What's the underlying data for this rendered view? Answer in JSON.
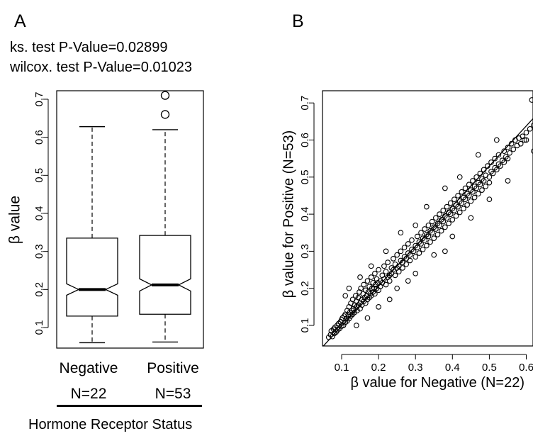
{
  "panels": {
    "a": {
      "label": "A"
    },
    "b": {
      "label": "B"
    }
  },
  "tests": [
    "ks. test P-Value=0.02899",
    "wilcox. test P-Value=0.01023"
  ],
  "footer": {
    "title": "Hormone Receptor Status"
  },
  "chart_data": [
    {
      "type": "box",
      "ylabel": "β value",
      "xlabel": "Hormone Receptor Status",
      "ylim": [
        0.05,
        0.72
      ],
      "yticks": [
        0.1,
        0.2,
        0.3,
        0.4,
        0.5,
        0.6,
        0.7
      ],
      "notched": true,
      "groups": [
        {
          "name": "Negative",
          "n_label": "N=22",
          "min": 0.06,
          "q1": 0.13,
          "median": 0.2,
          "q3": 0.335,
          "max": 0.628,
          "notch_low": 0.185,
          "notch_high": 0.215,
          "outliers": []
        },
        {
          "name": "Positive",
          "n_label": "N=53",
          "min": 0.062,
          "q1": 0.135,
          "median": 0.212,
          "q3": 0.342,
          "max": 0.62,
          "notch_low": 0.196,
          "notch_high": 0.228,
          "outliers": [
            0.66,
            0.71
          ]
        }
      ]
    },
    {
      "type": "scatter",
      "xlabel": "β value for Negative (N=22)",
      "ylabel": "β value for Positive (N=53)",
      "xlim": [
        0.05,
        0.68
      ],
      "ylim": [
        0.05,
        0.72
      ],
      "xticks": [
        0.1,
        0.2,
        0.3,
        0.4,
        0.5,
        0.6
      ],
      "yticks": [
        0.1,
        0.2,
        0.3,
        0.4,
        0.5,
        0.6,
        0.7
      ],
      "fit_line": {
        "slope": 1.08,
        "intercept": -0.01
      },
      "points": [
        [
          0.065,
          0.068
        ],
        [
          0.07,
          0.075
        ],
        [
          0.072,
          0.085
        ],
        [
          0.075,
          0.07
        ],
        [
          0.078,
          0.09
        ],
        [
          0.08,
          0.078
        ],
        [
          0.082,
          0.095
        ],
        [
          0.085,
          0.082
        ],
        [
          0.088,
          0.1
        ],
        [
          0.09,
          0.088
        ],
        [
          0.092,
          0.105
        ],
        [
          0.095,
          0.092
        ],
        [
          0.097,
          0.11
        ],
        [
          0.1,
          0.098
        ],
        [
          0.1,
          0.115
        ],
        [
          0.102,
          0.12
        ],
        [
          0.105,
          0.1
        ],
        [
          0.107,
          0.125
        ],
        [
          0.11,
          0.108
        ],
        [
          0.11,
          0.13
        ],
        [
          0.112,
          0.118
        ],
        [
          0.115,
          0.14
        ],
        [
          0.115,
          0.112
        ],
        [
          0.118,
          0.128
        ],
        [
          0.12,
          0.15
        ],
        [
          0.12,
          0.118
        ],
        [
          0.122,
          0.135
        ],
        [
          0.125,
          0.125
        ],
        [
          0.125,
          0.16
        ],
        [
          0.128,
          0.14
        ],
        [
          0.13,
          0.13
        ],
        [
          0.13,
          0.17
        ],
        [
          0.132,
          0.145
        ],
        [
          0.135,
          0.155
        ],
        [
          0.135,
          0.135
        ],
        [
          0.138,
          0.18
        ],
        [
          0.14,
          0.15
        ],
        [
          0.14,
          0.165
        ],
        [
          0.142,
          0.14
        ],
        [
          0.145,
          0.175
        ],
        [
          0.145,
          0.155
        ],
        [
          0.148,
          0.19
        ],
        [
          0.15,
          0.16
        ],
        [
          0.15,
          0.145
        ],
        [
          0.152,
          0.2
        ],
        [
          0.155,
          0.17
        ],
        [
          0.155,
          0.155
        ],
        [
          0.158,
          0.185
        ],
        [
          0.16,
          0.165
        ],
        [
          0.16,
          0.21
        ],
        [
          0.162,
          0.175
        ],
        [
          0.165,
          0.16
        ],
        [
          0.165,
          0.195
        ],
        [
          0.168,
          0.18
        ],
        [
          0.17,
          0.17
        ],
        [
          0.17,
          0.22
        ],
        [
          0.172,
          0.19
        ],
        [
          0.175,
          0.175
        ],
        [
          0.175,
          0.205
        ],
        [
          0.178,
          0.185
        ],
        [
          0.18,
          0.18
        ],
        [
          0.18,
          0.23
        ],
        [
          0.182,
          0.2
        ],
        [
          0.185,
          0.19
        ],
        [
          0.185,
          0.215
        ],
        [
          0.188,
          0.2
        ],
        [
          0.19,
          0.185
        ],
        [
          0.19,
          0.24
        ],
        [
          0.192,
          0.21
        ],
        [
          0.195,
          0.2
        ],
        [
          0.195,
          0.225
        ],
        [
          0.198,
          0.215
        ],
        [
          0.2,
          0.195
        ],
        [
          0.2,
          0.25
        ],
        [
          0.205,
          0.22
        ],
        [
          0.205,
          0.205
        ],
        [
          0.21,
          0.235
        ],
        [
          0.21,
          0.215
        ],
        [
          0.215,
          0.26
        ],
        [
          0.215,
          0.225
        ],
        [
          0.22,
          0.21
        ],
        [
          0.22,
          0.245
        ],
        [
          0.225,
          0.23
        ],
        [
          0.225,
          0.27
        ],
        [
          0.23,
          0.235
        ],
        [
          0.23,
          0.22
        ],
        [
          0.235,
          0.255
        ],
        [
          0.235,
          0.24
        ],
        [
          0.24,
          0.28
        ],
        [
          0.24,
          0.25
        ],
        [
          0.245,
          0.235
        ],
        [
          0.245,
          0.265
        ],
        [
          0.25,
          0.255
        ],
        [
          0.25,
          0.29
        ],
        [
          0.255,
          0.26
        ],
        [
          0.255,
          0.245
        ],
        [
          0.26,
          0.275
        ],
        [
          0.26,
          0.3
        ],
        [
          0.265,
          0.27
        ],
        [
          0.265,
          0.255
        ],
        [
          0.27,
          0.285
        ],
        [
          0.27,
          0.31
        ],
        [
          0.275,
          0.28
        ],
        [
          0.275,
          0.265
        ],
        [
          0.28,
          0.295
        ],
        [
          0.28,
          0.32
        ],
        [
          0.285,
          0.29
        ],
        [
          0.285,
          0.275
        ],
        [
          0.29,
          0.305
        ],
        [
          0.29,
          0.33
        ],
        [
          0.295,
          0.3
        ],
        [
          0.3,
          0.285
        ],
        [
          0.3,
          0.315
        ],
        [
          0.305,
          0.34
        ],
        [
          0.305,
          0.31
        ],
        [
          0.31,
          0.295
        ],
        [
          0.31,
          0.325
        ],
        [
          0.315,
          0.35
        ],
        [
          0.315,
          0.32
        ],
        [
          0.32,
          0.305
        ],
        [
          0.32,
          0.335
        ],
        [
          0.325,
          0.36
        ],
        [
          0.325,
          0.33
        ],
        [
          0.33,
          0.315
        ],
        [
          0.33,
          0.345
        ],
        [
          0.335,
          0.37
        ],
        [
          0.335,
          0.34
        ],
        [
          0.34,
          0.325
        ],
        [
          0.34,
          0.355
        ],
        [
          0.345,
          0.38
        ],
        [
          0.345,
          0.35
        ],
        [
          0.35,
          0.335
        ],
        [
          0.35,
          0.365
        ],
        [
          0.355,
          0.39
        ],
        [
          0.355,
          0.36
        ],
        [
          0.36,
          0.345
        ],
        [
          0.36,
          0.375
        ],
        [
          0.365,
          0.4
        ],
        [
          0.365,
          0.37
        ],
        [
          0.37,
          0.355
        ],
        [
          0.37,
          0.385
        ],
        [
          0.375,
          0.41
        ],
        [
          0.375,
          0.38
        ],
        [
          0.38,
          0.365
        ],
        [
          0.38,
          0.395
        ],
        [
          0.385,
          0.42
        ],
        [
          0.385,
          0.39
        ],
        [
          0.39,
          0.375
        ],
        [
          0.39,
          0.405
        ],
        [
          0.395,
          0.43
        ],
        [
          0.395,
          0.4
        ],
        [
          0.4,
          0.385
        ],
        [
          0.4,
          0.415
        ],
        [
          0.405,
          0.44
        ],
        [
          0.405,
          0.41
        ],
        [
          0.41,
          0.395
        ],
        [
          0.41,
          0.425
        ],
        [
          0.415,
          0.45
        ],
        [
          0.415,
          0.42
        ],
        [
          0.42,
          0.405
        ],
        [
          0.42,
          0.435
        ],
        [
          0.425,
          0.46
        ],
        [
          0.425,
          0.43
        ],
        [
          0.43,
          0.415
        ],
        [
          0.43,
          0.445
        ],
        [
          0.435,
          0.47
        ],
        [
          0.435,
          0.44
        ],
        [
          0.44,
          0.425
        ],
        [
          0.44,
          0.455
        ],
        [
          0.445,
          0.48
        ],
        [
          0.445,
          0.45
        ],
        [
          0.45,
          0.435
        ],
        [
          0.45,
          0.465
        ],
        [
          0.455,
          0.49
        ],
        [
          0.455,
          0.46
        ],
        [
          0.46,
          0.445
        ],
        [
          0.46,
          0.475
        ],
        [
          0.465,
          0.5
        ],
        [
          0.465,
          0.47
        ],
        [
          0.47,
          0.455
        ],
        [
          0.47,
          0.485
        ],
        [
          0.475,
          0.51
        ],
        [
          0.475,
          0.48
        ],
        [
          0.48,
          0.465
        ],
        [
          0.48,
          0.495
        ],
        [
          0.485,
          0.52
        ],
        [
          0.485,
          0.49
        ],
        [
          0.49,
          0.475
        ],
        [
          0.49,
          0.505
        ],
        [
          0.495,
          0.53
        ],
        [
          0.5,
          0.5
        ],
        [
          0.5,
          0.485
        ],
        [
          0.505,
          0.515
        ],
        [
          0.505,
          0.54
        ],
        [
          0.51,
          0.51
        ],
        [
          0.515,
          0.525
        ],
        [
          0.515,
          0.55
        ],
        [
          0.52,
          0.52
        ],
        [
          0.525,
          0.535
        ],
        [
          0.525,
          0.56
        ],
        [
          0.53,
          0.53
        ],
        [
          0.535,
          0.545
        ],
        [
          0.54,
          0.57
        ],
        [
          0.54,
          0.54
        ],
        [
          0.545,
          0.555
        ],
        [
          0.55,
          0.58
        ],
        [
          0.55,
          0.55
        ],
        [
          0.555,
          0.565
        ],
        [
          0.56,
          0.59
        ],
        [
          0.565,
          0.575
        ],
        [
          0.57,
          0.6
        ],
        [
          0.575,
          0.585
        ],
        [
          0.58,
          0.605
        ],
        [
          0.585,
          0.59
        ],
        [
          0.59,
          0.61
        ],
        [
          0.595,
          0.6
        ],
        [
          0.6,
          0.62
        ],
        [
          0.61,
          0.63
        ],
        [
          0.62,
          0.64
        ],
        [
          0.63,
          0.66
        ],
        [
          0.64,
          0.67
        ],
        [
          0.66,
          0.55
        ],
        [
          0.62,
          0.57
        ],
        [
          0.6,
          0.6
        ],
        [
          0.615,
          0.708
        ],
        [
          0.26,
          0.35
        ],
        [
          0.3,
          0.37
        ],
        [
          0.22,
          0.3
        ],
        [
          0.18,
          0.26
        ],
        [
          0.15,
          0.23
        ],
        [
          0.12,
          0.2
        ],
        [
          0.11,
          0.18
        ],
        [
          0.25,
          0.2
        ],
        [
          0.3,
          0.24
        ],
        [
          0.35,
          0.29
        ],
        [
          0.4,
          0.34
        ],
        [
          0.45,
          0.39
        ],
        [
          0.5,
          0.44
        ],
        [
          0.55,
          0.49
        ],
        [
          0.2,
          0.15
        ],
        [
          0.17,
          0.12
        ],
        [
          0.14,
          0.1
        ],
        [
          0.42,
          0.5
        ],
        [
          0.38,
          0.47
        ],
        [
          0.33,
          0.42
        ],
        [
          0.47,
          0.56
        ],
        [
          0.52,
          0.6
        ],
        [
          0.28,
          0.22
        ],
        [
          0.23,
          0.17
        ],
        [
          0.38,
          0.3
        ]
      ]
    }
  ]
}
